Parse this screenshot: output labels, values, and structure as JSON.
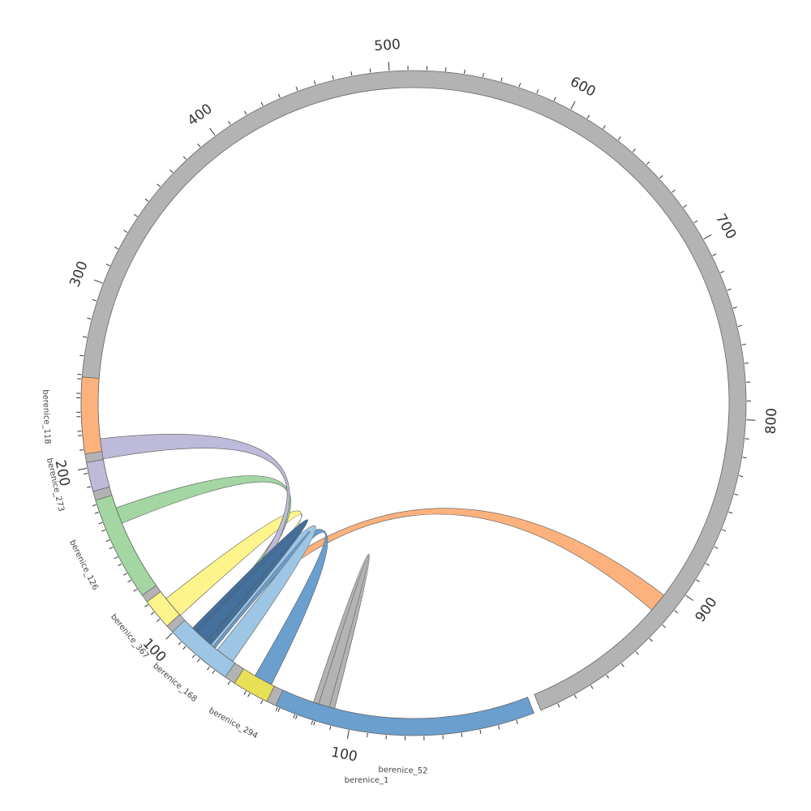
{
  "chart_data": {
    "type": "chord",
    "title": "",
    "segments": [
      {
        "name": "berenice_1",
        "label": "berenice_1",
        "start_deg": 104.0,
        "end_deg": 427.5,
        "color": "#b3b3b3",
        "ticks": [
          100,
          200,
          300,
          400,
          500,
          600,
          700,
          800,
          900
        ]
      },
      {
        "name": "berenice_52",
        "label": "berenice_52",
        "start_deg": 428.8,
        "end_deg": 474.5,
        "color": "#6a9fce",
        "ticks": [
          100
        ]
      },
      {
        "name": "berenice_294",
        "label": "berenice_294",
        "start_deg": 476.2,
        "end_deg": 482.6,
        "color": "#e8e055",
        "ticks": []
      },
      {
        "name": "berenice_168",
        "label": "berenice_168",
        "start_deg": 484.5,
        "end_deg": 496.5,
        "color": "#9cc6e3",
        "ticks": []
      },
      {
        "name": "berenice_367",
        "label": "berenice_367",
        "start_deg": 497.9,
        "end_deg": 503.3,
        "color": "#fdf58c",
        "ticks": []
      },
      {
        "name": "berenice_126",
        "label": "berenice_126",
        "start_deg": 504.7,
        "end_deg": 523.0,
        "color": "#a3d6a3",
        "ticks": []
      },
      {
        "name": "berenice_273",
        "label": "berenice_273",
        "start_deg": 524.6,
        "end_deg": 529.7,
        "color": "#bdbbd9",
        "ticks": []
      },
      {
        "name": "berenice_118",
        "label": "berenice_118",
        "start_deg": 531.2,
        "end_deg": 544.5,
        "color": "#fdb27d",
        "ticks": []
      }
    ],
    "links": [
      {
        "from": "berenice_1",
        "to": "berenice_52",
        "src": [
          464.5,
          467.5
        ],
        "dst": [
          465.5,
          468.5
        ],
        "color": "#b3b3b3"
      },
      {
        "from": "berenice_1",
        "to": "berenice_168",
        "src": [
          397.5,
          401.0
        ],
        "dst": [
          490.5,
          492.5
        ],
        "color": "#fdb27d"
      },
      {
        "from": "berenice_52",
        "to": "berenice_168",
        "src": [
          476.8,
          480.2
        ],
        "dst": [
          489.0,
          493.5
        ],
        "color": "#6a9fce"
      },
      {
        "from": "berenice_168",
        "to": "berenice_168",
        "src": [
          485.0,
          488.5
        ],
        "dst": [
          489.5,
          492.5
        ],
        "color": "#9cc6e3"
      },
      {
        "from": "berenice_367",
        "to": "berenice_168",
        "src": [
          497.7,
          501.7
        ],
        "dst": [
          490.5,
          492.5
        ],
        "color": "#fdf58c"
      },
      {
        "from": "berenice_126",
        "to": "berenice_168",
        "src": [
          517.6,
          520.6
        ],
        "dst": [
          491.5,
          493.5
        ],
        "color": "#a3d6a3"
      },
      {
        "from": "berenice_273",
        "to": "berenice_168",
        "src": [
          529.8,
          533.5
        ],
        "dst": [
          490.5,
          492.5
        ],
        "color": "#bdbbd9"
      },
      {
        "from": "berenice_168",
        "to": "berenice_168",
        "src": [
          490.0,
          493.5
        ],
        "dst": [
          491.0,
          494.5
        ],
        "color": "#44709d"
      }
    ]
  }
}
